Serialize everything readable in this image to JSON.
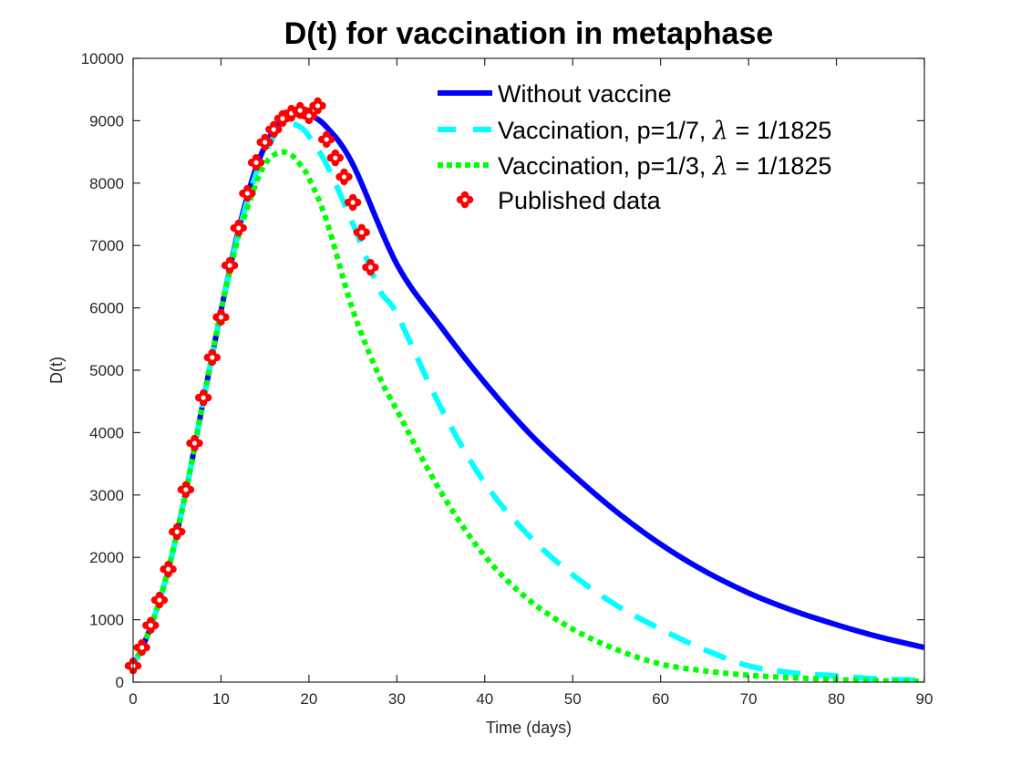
{
  "chart_data": {
    "type": "line",
    "title": "D(t) for vaccination in metaphase",
    "xlabel": "Time (days)",
    "ylabel": "D(t)",
    "xlim": [
      0,
      90
    ],
    "ylim": [
      0,
      10000
    ],
    "xticks": [
      0,
      10,
      20,
      30,
      40,
      50,
      60,
      70,
      80,
      90
    ],
    "xtick_labels": [
      "0",
      "10",
      "20",
      "30",
      "40",
      "50",
      "60",
      "70",
      "80",
      "90"
    ],
    "yticks": [
      0,
      1000,
      2000,
      3000,
      4000,
      5000,
      6000,
      7000,
      8000,
      9000,
      10000
    ],
    "ytick_labels": [
      "0",
      "1000",
      "2000",
      "3000",
      "4000",
      "5000",
      "6000",
      "7000",
      "8000",
      "9000",
      "10000"
    ],
    "grid": false,
    "legend_position": "top-right",
    "series": [
      {
        "name": "Without vaccine",
        "legend_parts": [
          "Without vaccine"
        ],
        "style": "solid",
        "color": "#0000ff",
        "x": [
          0,
          2,
          4,
          6,
          8,
          10,
          12,
          14,
          16,
          18,
          19,
          20,
          22,
          25,
          30,
          35,
          40,
          45,
          50,
          55,
          60,
          65,
          70,
          75,
          80,
          85,
          90
        ],
        "y": [
          260,
          880,
          1800,
          3050,
          4520,
          5950,
          7250,
          8250,
          8850,
          9110,
          9130,
          9100,
          8900,
          8300,
          6700,
          5700,
          4800,
          4000,
          3330,
          2730,
          2210,
          1780,
          1430,
          1150,
          920,
          720,
          555
        ]
      },
      {
        "name": "Vaccination, p=1/7, λ = 1/1825",
        "legend_parts": [
          "Vaccination, p=1/7, ",
          "λ",
          " = 1/1825"
        ],
        "style": "dashed",
        "color": "#00ffff",
        "x": [
          0,
          2,
          4,
          6,
          8,
          10,
          12,
          14,
          16,
          17,
          18,
          19,
          20,
          22,
          25,
          28,
          30,
          35,
          40,
          45,
          50,
          55,
          60,
          65,
          70,
          75,
          80,
          85,
          90
        ],
        "y": [
          260,
          880,
          1800,
          3050,
          4520,
          5950,
          7200,
          8150,
          8750,
          8900,
          8950,
          8900,
          8750,
          8300,
          7350,
          6300,
          5900,
          4400,
          3190,
          2350,
          1720,
          1230,
          850,
          520,
          260,
          150,
          100,
          50,
          30
        ]
      },
      {
        "name": "Vaccination, p=1/3, λ = 1/1825",
        "legend_parts": [
          "Vaccination, p=1/3, ",
          "λ",
          " = 1/1825"
        ],
        "style": "dotted",
        "color": "#00ff00",
        "x": [
          0,
          2,
          4,
          6,
          8,
          10,
          12,
          14,
          15,
          16,
          17,
          18,
          19,
          20,
          22,
          25,
          28,
          30,
          35,
          40,
          45,
          50,
          55,
          60,
          65,
          70,
          75,
          80,
          85,
          90
        ],
        "y": [
          260,
          880,
          1800,
          3050,
          4520,
          5950,
          7150,
          8000,
          8300,
          8450,
          8500,
          8450,
          8300,
          8080,
          7400,
          5960,
          4900,
          4360,
          3050,
          2020,
          1320,
          850,
          520,
          290,
          180,
          110,
          70,
          40,
          20,
          10
        ]
      }
    ],
    "scatter": {
      "name": "Published data",
      "legend_parts": [
        "Published data"
      ],
      "color": "#ff0000",
      "x": [
        0,
        1,
        2,
        3,
        4,
        5,
        6,
        7,
        8,
        9,
        10,
        11,
        12,
        13,
        14,
        15,
        16,
        17,
        18,
        19,
        20,
        21,
        22,
        23,
        24,
        25,
        26,
        27
      ],
      "y": [
        260,
        555,
        910,
        1315,
        1810,
        2410,
        3085,
        3830,
        4560,
        5205,
        5850,
        6680,
        7280,
        7835,
        8330,
        8655,
        8860,
        9035,
        9120,
        9165,
        9080,
        9240,
        8700,
        8405,
        8100,
        7690,
        7210,
        6650
      ]
    }
  }
}
